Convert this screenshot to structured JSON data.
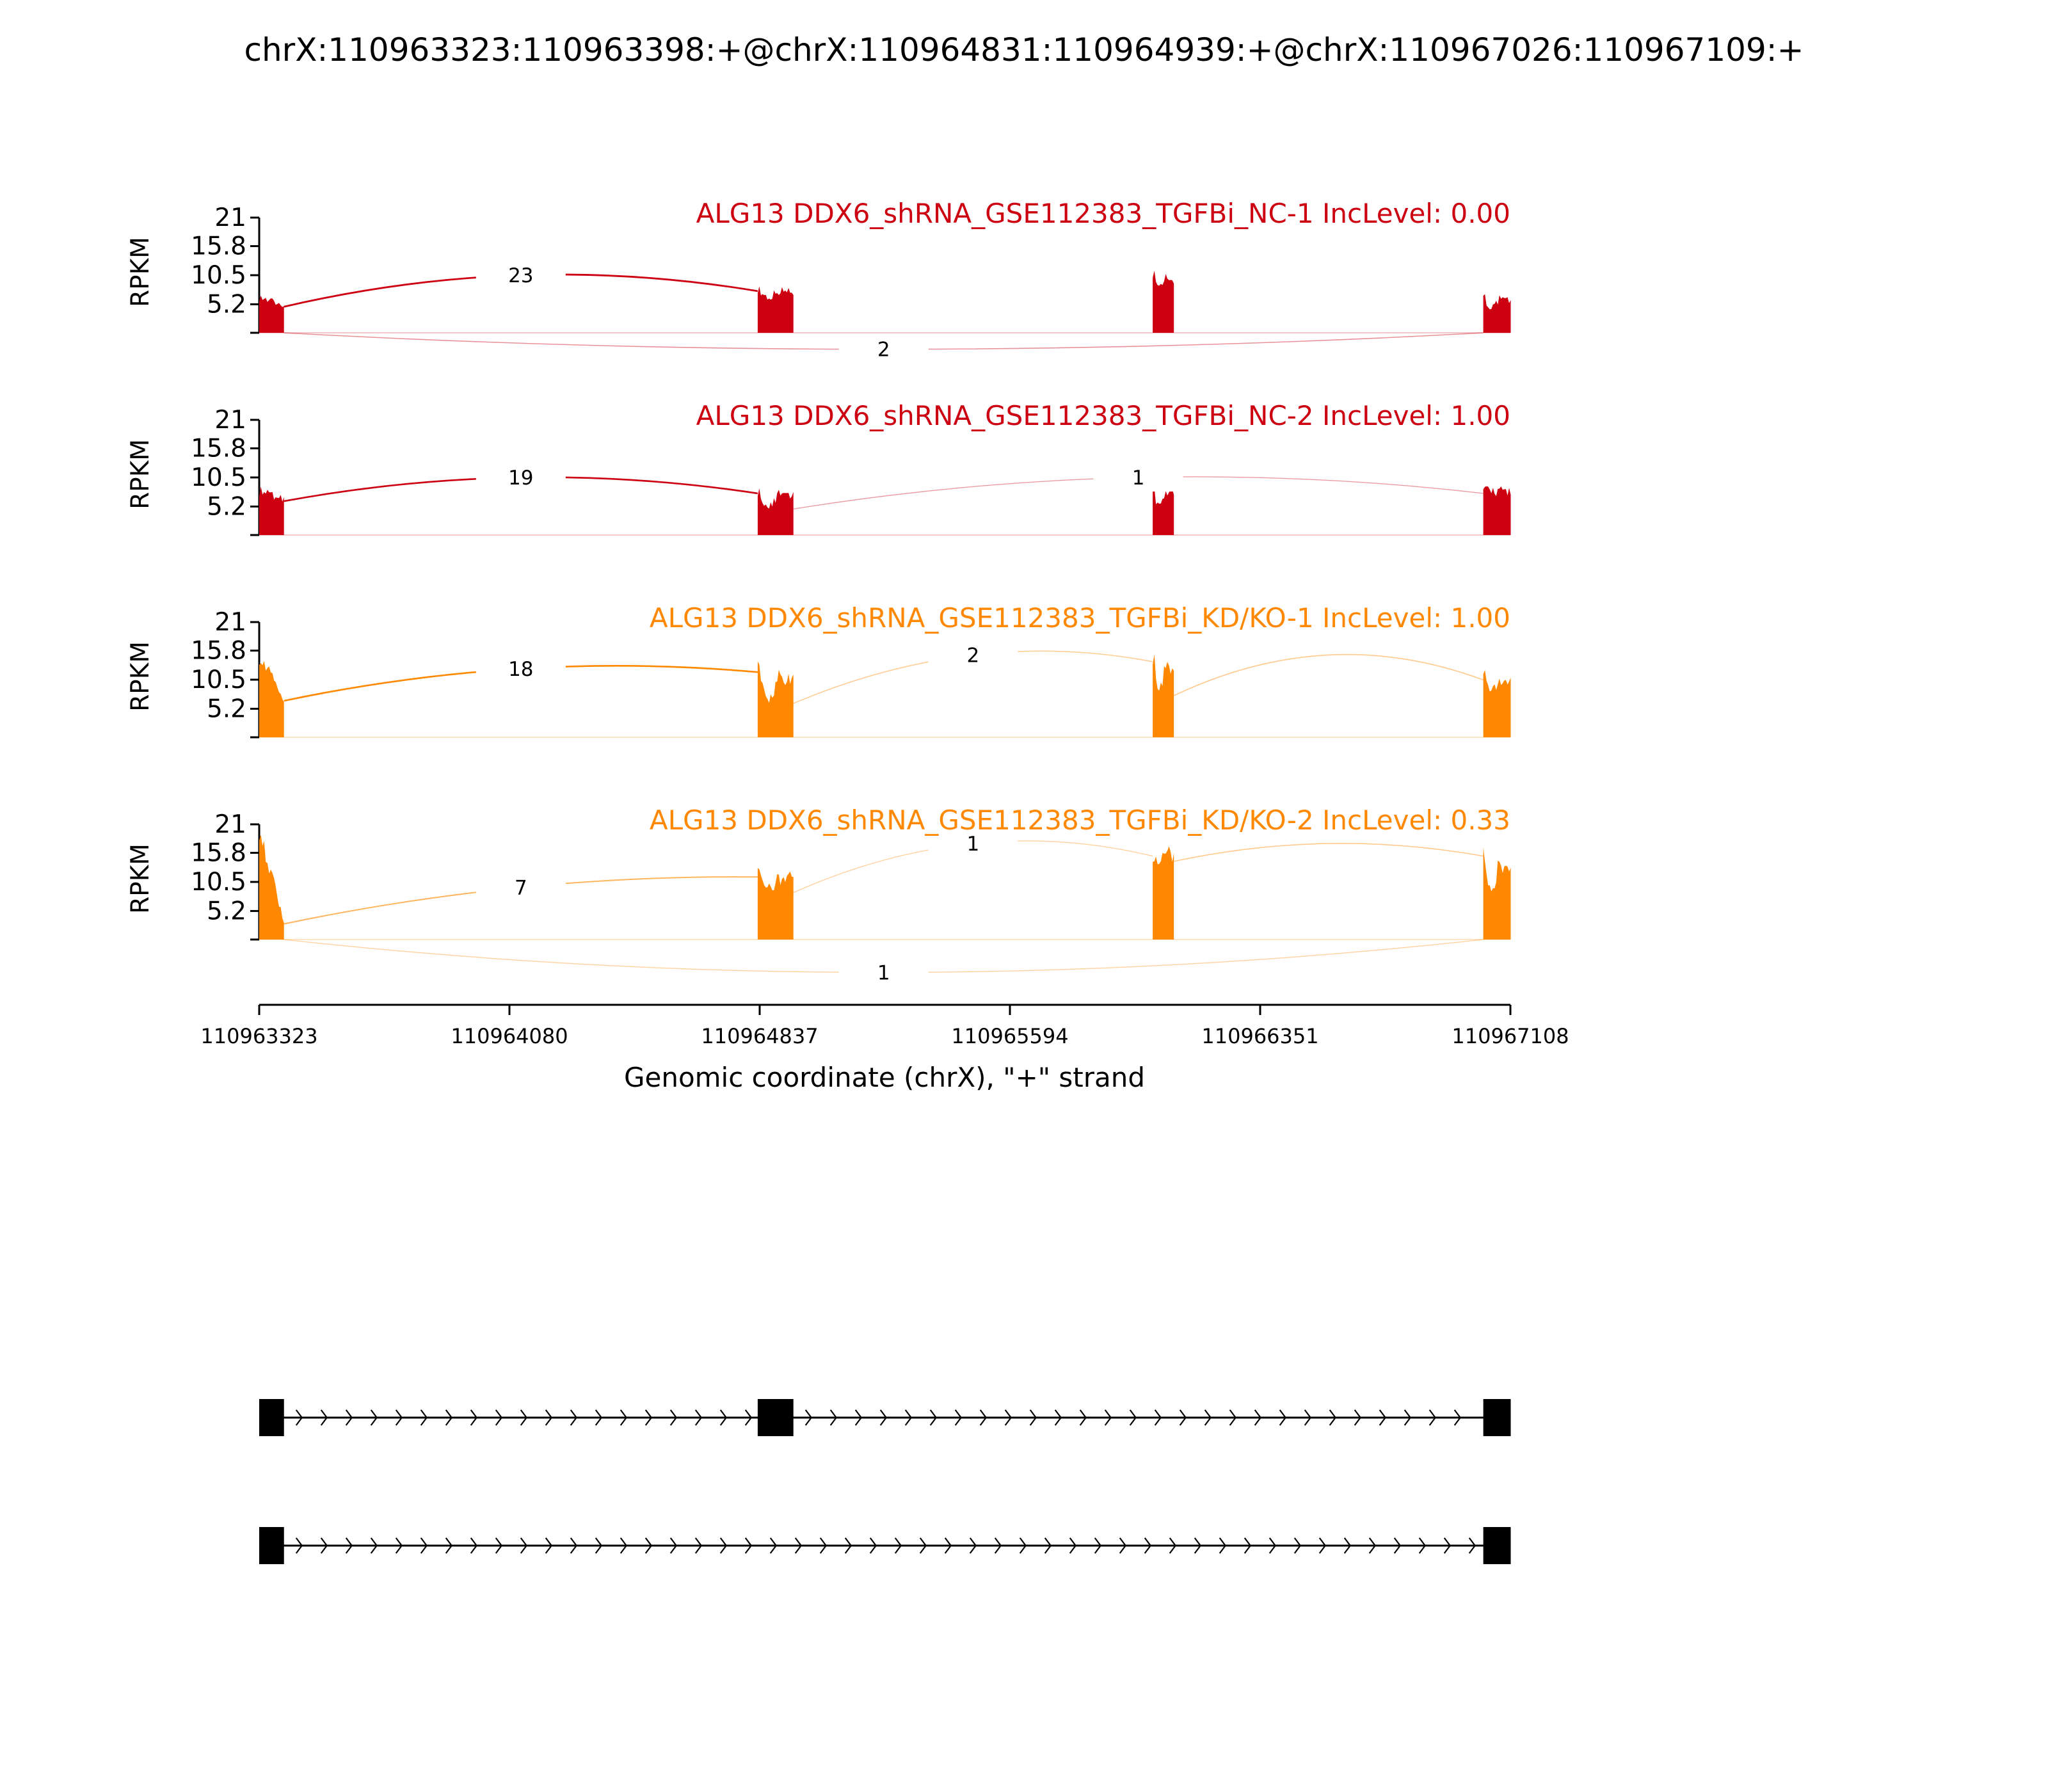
{
  "chart_data": {
    "type": "area",
    "title": "chrX:110963323:110963398:+@chrX:110964831:110964939:+@chrX:110967026:110967109:+",
    "ylabel": "RPKM",
    "xlabel": "Genomic coordinate (chrX), \"+\" strand",
    "xlim": [
      110963323,
      110967108
    ],
    "x_ticks": [
      "110963323",
      "110964080",
      "110964837",
      "110965594",
      "110966351",
      "110967108"
    ],
    "y_ticks": [
      "21",
      "15.8",
      "10.5",
      "5.2"
    ],
    "ylim": [
      0,
      21
    ],
    "colors": {
      "NC": "#cc0011",
      "KD": "#ff8800"
    },
    "exons": [
      {
        "start": 110963323,
        "end": 110963398
      },
      {
        "start": 110964831,
        "end": 110964939
      },
      {
        "start": 110966026,
        "end": 110966090
      },
      {
        "start": 110967026,
        "end": 110967109
      }
    ],
    "panels": [
      {
        "title": "ALG13 DDX6_shRNA_GSE112383_TGFBi_NC-1 IncLevel: 0.00",
        "group": "NC",
        "coverage": [
          [
            6.5,
            5.0
          ],
          [
            8.0,
            6.5
          ],
          [
            10.2,
            9.5
          ],
          [
            6.5,
            4.5
          ]
        ],
        "junctions": [
          {
            "from": 110963398,
            "to": 110964831,
            "count": "23",
            "above": true,
            "peak": 10.5
          },
          {
            "from": 110963398,
            "to": 110967026,
            "count": "2",
            "above": false,
            "peak": -3.0
          }
        ]
      },
      {
        "title": "ALG13 DDX6_shRNA_GSE112383_TGFBi_NC-2 IncLevel: 1.00",
        "group": "NC",
        "coverage": [
          [
            8.0,
            6.5
          ],
          [
            8.0,
            5.0
          ],
          [
            9.0,
            5.0
          ],
          [
            8.0,
            8.0
          ]
        ],
        "junctions": [
          {
            "from": 110963398,
            "to": 110964831,
            "count": "19",
            "above": true,
            "peak": 10.5
          },
          {
            "from": 110964939,
            "to": 110967026,
            "count": "1",
            "above": true,
            "peak": 10.5
          }
        ]
      },
      {
        "title": "ALG13 DDX6_shRNA_GSE112383_TGFBi_KD/KO-1 IncLevel: 1.00",
        "group": "KD",
        "coverage": [
          [
            15.0,
            7.0
          ],
          [
            12.5,
            6.5
          ],
          [
            14.5,
            8.0
          ],
          [
            11.0,
            8.5
          ]
        ],
        "junctions": [
          {
            "from": 110963398,
            "to": 110964831,
            "count": "18",
            "above": true,
            "peak": 12.5
          },
          {
            "from": 110964939,
            "to": 110966026,
            "count": "2",
            "above": true,
            "peak": 15.0
          },
          {
            "from": 110966090,
            "to": 110967026,
            "count": "",
            "above": true,
            "peak": 15.0
          }
        ]
      },
      {
        "title": "ALG13 DDX6_shRNA_GSE112383_TGFBi_KD/KO-2 IncLevel: 0.33",
        "group": "KD",
        "coverage": [
          [
            20.5,
            3.0
          ],
          [
            12.0,
            9.0
          ],
          [
            16.0,
            15.0
          ],
          [
            16.0,
            8.0
          ]
        ],
        "junctions": [
          {
            "from": 110963398,
            "to": 110964831,
            "count": "7",
            "above": true,
            "peak": 9.5
          },
          {
            "from": 110964939,
            "to": 110966026,
            "count": "1",
            "above": true,
            "peak": 17.5
          },
          {
            "from": 110966090,
            "to": 110967026,
            "count": "",
            "above": true,
            "peak": 17.5
          },
          {
            "from": 110963398,
            "to": 110967026,
            "count": "1",
            "above": false,
            "peak": -6.0
          }
        ]
      }
    ],
    "transcripts": [
      {
        "exons": [
          [
            110963323,
            110963398
          ],
          [
            110964831,
            110964939
          ],
          [
            110967026,
            110967109
          ]
        ]
      },
      {
        "exons": [
          [
            110963323,
            110963398
          ],
          [
            110967026,
            110967109
          ]
        ]
      }
    ]
  }
}
